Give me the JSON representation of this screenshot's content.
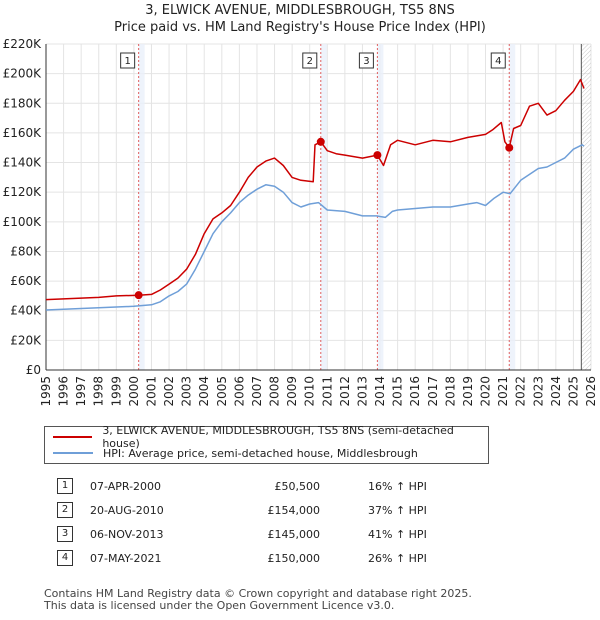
{
  "chart_data": {
    "type": "line",
    "title": "3, ELWICK AVENUE, MIDDLESBROUGH, TS5 8NS",
    "subtitle": "Price paid vs. HM Land Registry's House Price Index (HPI)",
    "xlim": [
      1995,
      2026
    ],
    "ylim": [
      0,
      220000
    ],
    "x_ticks": [
      "1995",
      "1996",
      "1997",
      "1998",
      "1999",
      "2000",
      "2001",
      "2002",
      "2003",
      "2004",
      "2005",
      "2006",
      "2007",
      "2008",
      "2009",
      "2010",
      "2011",
      "2012",
      "2013",
      "2014",
      "2015",
      "2016",
      "2017",
      "2018",
      "2019",
      "2020",
      "2021",
      "2022",
      "2023",
      "2024",
      "2025",
      "2026"
    ],
    "y_ticks": [
      {
        "value": 0,
        "label": "£0"
      },
      {
        "value": 20000,
        "label": "£20K"
      },
      {
        "value": 40000,
        "label": "£40K"
      },
      {
        "value": 60000,
        "label": "£60K"
      },
      {
        "value": 80000,
        "label": "£80K"
      },
      {
        "value": 100000,
        "label": "£100K"
      },
      {
        "value": 120000,
        "label": "£120K"
      },
      {
        "value": 140000,
        "label": "£140K"
      },
      {
        "value": 160000,
        "label": "£160K"
      },
      {
        "value": 180000,
        "label": "£180K"
      },
      {
        "value": 200000,
        "label": "£200K"
      },
      {
        "value": 220000,
        "label": "£220K"
      }
    ],
    "series": [
      {
        "name": "3, ELWICK AVENUE, MIDDLESBROUGH, TS5 8NS (semi-detached house)",
        "color": "#cc0000",
        "points": [
          [
            1995,
            47500
          ],
          [
            1996,
            48000
          ],
          [
            1997,
            48500
          ],
          [
            1998,
            49000
          ],
          [
            1999,
            50000
          ],
          [
            2000.27,
            50500
          ],
          [
            2001,
            51000
          ],
          [
            2001.5,
            54000
          ],
          [
            2002,
            58000
          ],
          [
            2002.5,
            62000
          ],
          [
            2003,
            68000
          ],
          [
            2003.5,
            78000
          ],
          [
            2004,
            92000
          ],
          [
            2004.5,
            102000
          ],
          [
            2005,
            106000
          ],
          [
            2005.5,
            111000
          ],
          [
            2006,
            120000
          ],
          [
            2006.5,
            130000
          ],
          [
            2007,
            137000
          ],
          [
            2007.5,
            141000
          ],
          [
            2008,
            143000
          ],
          [
            2008.5,
            138000
          ],
          [
            2009,
            130000
          ],
          [
            2009.5,
            128000
          ],
          [
            2010.2,
            127000
          ],
          [
            2010.3,
            152000
          ],
          [
            2010.63,
            154000
          ],
          [
            2011,
            148000
          ],
          [
            2011.5,
            146000
          ],
          [
            2012,
            145000
          ],
          [
            2012.5,
            144000
          ],
          [
            2013,
            143000
          ],
          [
            2013.85,
            145000
          ],
          [
            2014.2,
            138000
          ],
          [
            2014.6,
            152000
          ],
          [
            2015,
            155000
          ],
          [
            2016,
            152000
          ],
          [
            2017,
            155000
          ],
          [
            2018,
            154000
          ],
          [
            2019,
            157000
          ],
          [
            2019.5,
            158000
          ],
          [
            2020,
            159000
          ],
          [
            2020.4,
            162000
          ],
          [
            2020.9,
            167000
          ],
          [
            2021.1,
            154000
          ],
          [
            2021.35,
            150000
          ],
          [
            2021.6,
            163000
          ],
          [
            2022,
            165000
          ],
          [
            2022.5,
            178000
          ],
          [
            2023,
            180000
          ],
          [
            2023.5,
            172000
          ],
          [
            2024,
            175000
          ],
          [
            2024.5,
            182000
          ],
          [
            2025,
            188000
          ],
          [
            2025.4,
            196000
          ],
          [
            2025.6,
            190000
          ]
        ]
      },
      {
        "name": "HPI: Average price, semi-detached house, Middlesbrough",
        "color": "#6f9fd8",
        "points": [
          [
            1995,
            40500
          ],
          [
            1996,
            41000
          ],
          [
            1997,
            41500
          ],
          [
            1998,
            42000
          ],
          [
            1999,
            42500
          ],
          [
            2000,
            43000
          ],
          [
            2001,
            44000
          ],
          [
            2001.5,
            46000
          ],
          [
            2002,
            50000
          ],
          [
            2002.5,
            53000
          ],
          [
            2003,
            58000
          ],
          [
            2003.5,
            68000
          ],
          [
            2004,
            80000
          ],
          [
            2004.5,
            92000
          ],
          [
            2005,
            100000
          ],
          [
            2005.5,
            106000
          ],
          [
            2006,
            113000
          ],
          [
            2006.5,
            118000
          ],
          [
            2007,
            122000
          ],
          [
            2007.5,
            125000
          ],
          [
            2008,
            124000
          ],
          [
            2008.5,
            120000
          ],
          [
            2009,
            113000
          ],
          [
            2009.5,
            110000
          ],
          [
            2010,
            112000
          ],
          [
            2010.5,
            113000
          ],
          [
            2011,
            108000
          ],
          [
            2012,
            107000
          ],
          [
            2013,
            104000
          ],
          [
            2013.8,
            104000
          ],
          [
            2014.3,
            103000
          ],
          [
            2014.7,
            107000
          ],
          [
            2015,
            108000
          ],
          [
            2016,
            109000
          ],
          [
            2017,
            110000
          ],
          [
            2018,
            110000
          ],
          [
            2019,
            112000
          ],
          [
            2019.5,
            113000
          ],
          [
            2020,
            111000
          ],
          [
            2020.5,
            116000
          ],
          [
            2021,
            120000
          ],
          [
            2021.4,
            119000
          ],
          [
            2022,
            128000
          ],
          [
            2022.5,
            132000
          ],
          [
            2023,
            136000
          ],
          [
            2023.5,
            137000
          ],
          [
            2024,
            140000
          ],
          [
            2024.5,
            143000
          ],
          [
            2025,
            149000
          ],
          [
            2025.5,
            152000
          ],
          [
            2025.6,
            151000
          ]
        ]
      }
    ],
    "sales": [
      {
        "label": "1",
        "year": 2000.27,
        "price": 50500
      },
      {
        "label": "2",
        "year": 2010.63,
        "price": 154000
      },
      {
        "label": "3",
        "year": 2013.85,
        "price": 145000
      },
      {
        "label": "4",
        "year": 2021.35,
        "price": 150000
      }
    ],
    "forecast_start": 2025.45
  },
  "legend": {
    "property_label": "3, ELWICK AVENUE, MIDDLESBROUGH, TS5 8NS (semi-detached house)",
    "hpi_label": "HPI: Average price, semi-detached house, Middlesbrough",
    "property_color": "#cc0000",
    "hpi_color": "#6f9fd8"
  },
  "sales_table": [
    {
      "num": "1",
      "date": "07-APR-2000",
      "price": "£50,500",
      "hpi": "16% ↑ HPI"
    },
    {
      "num": "2",
      "date": "20-AUG-2010",
      "price": "£154,000",
      "hpi": "37% ↑ HPI"
    },
    {
      "num": "3",
      "date": "06-NOV-2013",
      "price": "£145,000",
      "hpi": "41% ↑ HPI"
    },
    {
      "num": "4",
      "date": "07-MAY-2021",
      "price": "£150,000",
      "hpi": "26% ↑ HPI"
    }
  ],
  "footer": {
    "line1": "Contains HM Land Registry data © Crown copyright and database right 2025.",
    "line2": "This data is licensed under the Open Government Licence v3.0."
  }
}
